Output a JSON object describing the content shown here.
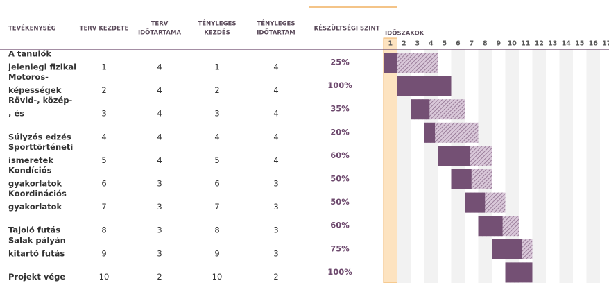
{
  "headers": [
    [
      "TEVÉKENYSÉG"
    ],
    [
      "TERV KEZDETE"
    ],
    [
      "TERV",
      "IDŐTARTAMA"
    ],
    [
      "TÉNYLEGES",
      "KEZDÉS"
    ],
    [
      "TÉNYLEGES",
      "IDŐTARTAM"
    ],
    [
      "KÉSZÜLTSÉGI SZINT"
    ]
  ],
  "periods_title": "IDŐSZAKOK",
  "periods": [
    1,
    2,
    3,
    4,
    5,
    6,
    7,
    8,
    9,
    10,
    11,
    12,
    13,
    14,
    15,
    16,
    17
  ],
  "current_period": 1,
  "rows": [
    {
      "activity": [
        "A tanulók",
        "jelenlegi fizikai"
      ],
      "plan_start": 1,
      "plan_duration": 4,
      "actual_start": 1,
      "actual_duration": 4,
      "completion": 25,
      "completion_label": "25%"
    },
    {
      "activity": [
        "Motoros-",
        "képességek"
      ],
      "plan_start": 2,
      "plan_duration": 4,
      "actual_start": 2,
      "actual_duration": 4,
      "completion": 100,
      "completion_label": "100%"
    },
    {
      "activity": [
        "Rövid-, közép-",
        ", és"
      ],
      "plan_start": 3,
      "plan_duration": 4,
      "actual_start": 3,
      "actual_duration": 4,
      "completion": 35,
      "completion_label": "35%"
    },
    {
      "activity": [
        "Súlyzós edzés"
      ],
      "plan_start": 4,
      "plan_duration": 4,
      "actual_start": 4,
      "actual_duration": 4,
      "completion": 20,
      "completion_label": "20%"
    },
    {
      "activity": [
        "Sporttörténeti",
        "ismeretek"
      ],
      "plan_start": 5,
      "plan_duration": 4,
      "actual_start": 5,
      "actual_duration": 4,
      "completion": 60,
      "completion_label": "60%"
    },
    {
      "activity": [
        "Kondíciós",
        "gyakorlatok"
      ],
      "plan_start": 6,
      "plan_duration": 3,
      "actual_start": 6,
      "actual_duration": 3,
      "completion": 50,
      "completion_label": "50%"
    },
    {
      "activity": [
        "Koordinációs",
        "gyakorlatok"
      ],
      "plan_start": 7,
      "plan_duration": 3,
      "actual_start": 7,
      "actual_duration": 3,
      "completion": 50,
      "completion_label": "50%"
    },
    {
      "activity": [
        "Tajoló futás"
      ],
      "plan_start": 8,
      "plan_duration": 3,
      "actual_start": 8,
      "actual_duration": 3,
      "completion": 60,
      "completion_label": "60%"
    },
    {
      "activity": [
        "Salak pályán",
        "kitartó futás"
      ],
      "plan_start": 9,
      "plan_duration": 3,
      "actual_start": 9,
      "actual_duration": 3,
      "completion": 75,
      "completion_label": "75%"
    },
    {
      "activity": [
        "Projekt vége"
      ],
      "plan_start": 10,
      "plan_duration": 2,
      "actual_start": 10,
      "actual_duration": 2,
      "completion": 100,
      "completion_label": "100%"
    }
  ]
}
